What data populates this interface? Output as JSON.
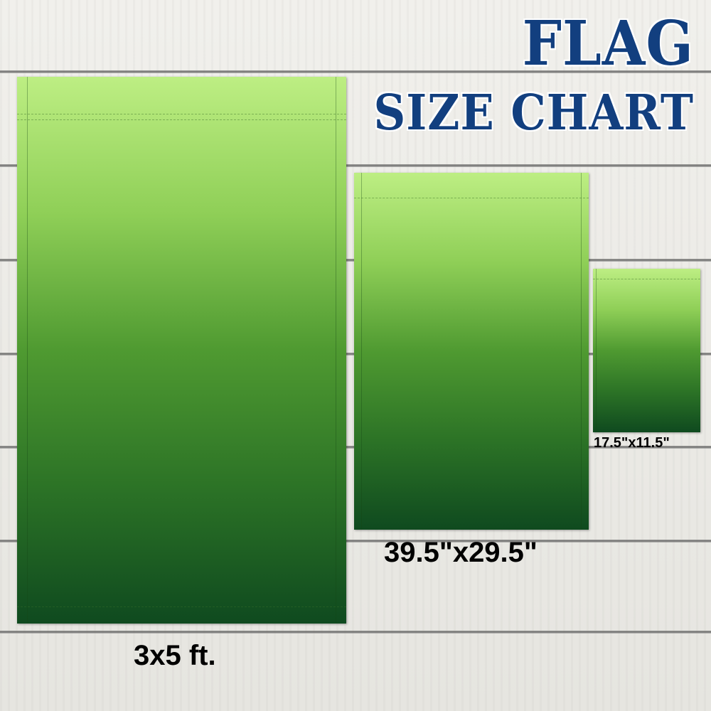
{
  "title": {
    "line1": "FLAG",
    "line2": "SIZE CHART",
    "color": "#123f7f"
  },
  "flags": [
    {
      "size_label": "3x5 ft."
    },
    {
      "size_label": "39.5\"x29.5\""
    },
    {
      "size_label": "17.5\"x11.5\""
    }
  ],
  "colors": {
    "flag_top": "#bdee83",
    "flag_bottom": "#0f4a1f",
    "background": "#ecebe6"
  }
}
